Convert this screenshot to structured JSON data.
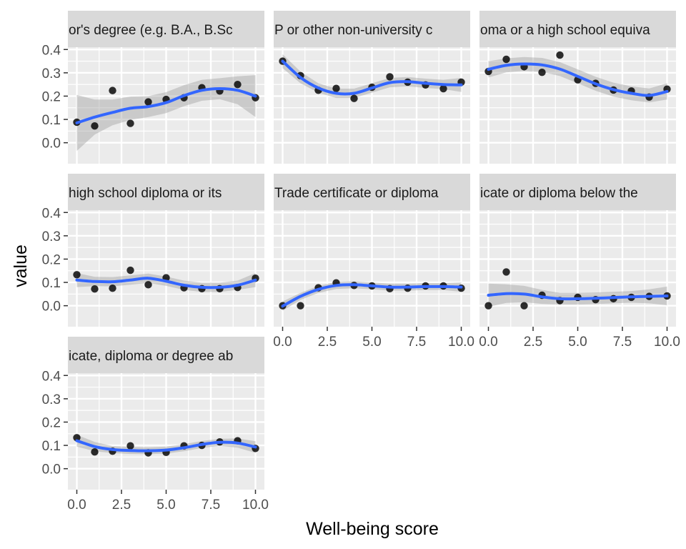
{
  "colors": {
    "panel_background": "#EBEBEB",
    "strip_background": "#D9D9D9",
    "gridline": "#FFFFFF",
    "smooth_line": "#3366FF",
    "confidence_band": "#999999",
    "points": "#000000"
  },
  "chart_data": {
    "type": "scatter",
    "layout": "facet_wrap 3 columns",
    "xlabel": "Well-being score",
    "ylabel": "value",
    "xlim": [
      -0.5,
      10.5
    ],
    "ylim": [
      -0.09,
      0.41
    ],
    "x_ticks": [
      0,
      2.5,
      5,
      7.5,
      10
    ],
    "x_tick_labels": [
      "0.0",
      "2.5",
      "5.0",
      "7.5",
      "10.0"
    ],
    "y_ticks": [
      0,
      0.1,
      0.2,
      0.3,
      0.4
    ],
    "y_tick_labels": [
      "0.0",
      "0.1",
      "0.2",
      "0.3",
      "0.4"
    ],
    "grid": true,
    "smoothing": "loess with confidence band",
    "facets": [
      {
        "title": "or's degree (e.g. B.A., B.Sc",
        "points": [
          [
            0,
            0.088
          ],
          [
            1,
            0.072
          ],
          [
            2,
            0.224
          ],
          [
            3,
            0.083
          ],
          [
            4,
            0.175
          ],
          [
            5,
            0.186
          ],
          [
            6,
            0.193
          ],
          [
            7,
            0.236
          ],
          [
            8,
            0.222
          ],
          [
            9,
            0.25
          ],
          [
            10,
            0.193
          ]
        ],
        "smooth": [
          [
            0,
            0.085
          ],
          [
            1,
            0.11
          ],
          [
            2,
            0.13
          ],
          [
            3,
            0.148
          ],
          [
            4,
            0.155
          ],
          [
            5,
            0.172
          ],
          [
            6,
            0.202
          ],
          [
            7,
            0.225
          ],
          [
            8,
            0.232
          ],
          [
            9,
            0.225
          ],
          [
            10,
            0.2
          ]
        ],
        "band": [
          0.12,
          0.075,
          0.055,
          0.05,
          0.045,
          0.045,
          0.045,
          0.045,
          0.045,
          0.06,
          0.09
        ]
      },
      {
        "title": "P or other non-university c",
        "points": [
          [
            0,
            0.35
          ],
          [
            1,
            0.288
          ],
          [
            2,
            0.225
          ],
          [
            3,
            0.233
          ],
          [
            4,
            0.19
          ],
          [
            5,
            0.238
          ],
          [
            6,
            0.283
          ],
          [
            7,
            0.26
          ],
          [
            8,
            0.248
          ],
          [
            9,
            0.232
          ],
          [
            10,
            0.26
          ]
        ],
        "smooth": [
          [
            0,
            0.35
          ],
          [
            1,
            0.28
          ],
          [
            2,
            0.235
          ],
          [
            3,
            0.212
          ],
          [
            4,
            0.212
          ],
          [
            5,
            0.235
          ],
          [
            6,
            0.258
          ],
          [
            7,
            0.262
          ],
          [
            8,
            0.255
          ],
          [
            9,
            0.25
          ],
          [
            10,
            0.248
          ]
        ],
        "band": [
          0.03,
          0.025,
          0.02,
          0.02,
          0.02,
          0.02,
          0.02,
          0.02,
          0.02,
          0.02,
          0.03
        ]
      },
      {
        "title": "oma or a high school equiva",
        "points": [
          [
            0,
            0.306
          ],
          [
            1,
            0.358
          ],
          [
            2,
            0.326
          ],
          [
            3,
            0.302
          ],
          [
            4,
            0.376
          ],
          [
            5,
            0.27
          ],
          [
            6,
            0.255
          ],
          [
            7,
            0.226
          ],
          [
            8,
            0.222
          ],
          [
            9,
            0.196
          ],
          [
            10,
            0.23
          ]
        ],
        "smooth": [
          [
            0,
            0.315
          ],
          [
            1,
            0.332
          ],
          [
            2,
            0.338
          ],
          [
            3,
            0.334
          ],
          [
            4,
            0.316
          ],
          [
            5,
            0.285
          ],
          [
            6,
            0.253
          ],
          [
            7,
            0.228
          ],
          [
            8,
            0.212
          ],
          [
            9,
            0.203
          ],
          [
            10,
            0.22
          ]
        ],
        "band": [
          0.035,
          0.03,
          0.03,
          0.03,
          0.03,
          0.03,
          0.03,
          0.03,
          0.03,
          0.03,
          0.035
        ]
      },
      {
        "title": "high school diploma or its",
        "points": [
          [
            0,
            0.133
          ],
          [
            1,
            0.072
          ],
          [
            2,
            0.075
          ],
          [
            3,
            0.152
          ],
          [
            4,
            0.09
          ],
          [
            5,
            0.12
          ],
          [
            6,
            0.077
          ],
          [
            7,
            0.073
          ],
          [
            8,
            0.073
          ],
          [
            9,
            0.078
          ],
          [
            10,
            0.118
          ]
        ],
        "smooth": [
          [
            0,
            0.11
          ],
          [
            1,
            0.104
          ],
          [
            2,
            0.103
          ],
          [
            3,
            0.11
          ],
          [
            4,
            0.118
          ],
          [
            5,
            0.105
          ],
          [
            6,
            0.088
          ],
          [
            7,
            0.079
          ],
          [
            8,
            0.079
          ],
          [
            9,
            0.088
          ],
          [
            10,
            0.11
          ]
        ],
        "band": [
          0.03,
          0.02,
          0.02,
          0.02,
          0.02,
          0.02,
          0.02,
          0.02,
          0.02,
          0.02,
          0.03
        ]
      },
      {
        "title": "Trade certificate or diploma",
        "points": [
          [
            0,
            0.0
          ],
          [
            1,
            0.0
          ],
          [
            2,
            0.077
          ],
          [
            3,
            0.098
          ],
          [
            4,
            0.087
          ],
          [
            5,
            0.085
          ],
          [
            6,
            0.073
          ],
          [
            7,
            0.075
          ],
          [
            8,
            0.085
          ],
          [
            9,
            0.085
          ],
          [
            10,
            0.075
          ]
        ],
        "smooth": [
          [
            0,
            -0.002
          ],
          [
            1,
            0.04
          ],
          [
            2,
            0.07
          ],
          [
            3,
            0.087
          ],
          [
            4,
            0.09
          ],
          [
            5,
            0.085
          ],
          [
            6,
            0.08
          ],
          [
            7,
            0.08
          ],
          [
            8,
            0.082
          ],
          [
            9,
            0.082
          ],
          [
            10,
            0.08
          ]
        ],
        "band": [
          0.02,
          0.015,
          0.015,
          0.015,
          0.015,
          0.015,
          0.015,
          0.015,
          0.015,
          0.015,
          0.02
        ]
      },
      {
        "title": "icate or diploma below the",
        "points": [
          [
            0,
            0.0
          ],
          [
            1,
            0.145
          ],
          [
            2,
            0.0
          ],
          [
            3,
            0.045
          ],
          [
            4,
            0.022
          ],
          [
            5,
            0.036
          ],
          [
            6,
            0.026
          ],
          [
            7,
            0.03
          ],
          [
            8,
            0.036
          ],
          [
            9,
            0.04
          ],
          [
            10,
            0.042
          ]
        ],
        "smooth": [
          [
            0,
            0.045
          ],
          [
            1,
            0.052
          ],
          [
            2,
            0.05
          ],
          [
            3,
            0.038
          ],
          [
            4,
            0.03
          ],
          [
            5,
            0.03
          ],
          [
            6,
            0.032
          ],
          [
            7,
            0.035
          ],
          [
            8,
            0.038
          ],
          [
            9,
            0.04
          ],
          [
            10,
            0.042
          ]
        ],
        "band": [
          0.05,
          0.04,
          0.035,
          0.03,
          0.025,
          0.025,
          0.025,
          0.025,
          0.025,
          0.03,
          0.04
        ]
      },
      {
        "title": "icate, diploma or degree ab",
        "points": [
          [
            0,
            0.133
          ],
          [
            1,
            0.072
          ],
          [
            2,
            0.075
          ],
          [
            3,
            0.098
          ],
          [
            4,
            0.068
          ],
          [
            5,
            0.07
          ],
          [
            6,
            0.098
          ],
          [
            7,
            0.1
          ],
          [
            8,
            0.115
          ],
          [
            9,
            0.12
          ],
          [
            10,
            0.087
          ]
        ],
        "smooth": [
          [
            0,
            0.12
          ],
          [
            1,
            0.095
          ],
          [
            2,
            0.082
          ],
          [
            3,
            0.078
          ],
          [
            4,
            0.077
          ],
          [
            5,
            0.08
          ],
          [
            6,
            0.09
          ],
          [
            7,
            0.104
          ],
          [
            8,
            0.113
          ],
          [
            9,
            0.11
          ],
          [
            10,
            0.093
          ]
        ],
        "band": [
          0.025,
          0.02,
          0.015,
          0.015,
          0.015,
          0.015,
          0.015,
          0.015,
          0.015,
          0.02,
          0.025
        ]
      }
    ]
  }
}
